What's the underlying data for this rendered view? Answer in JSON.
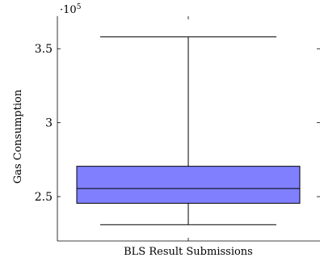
{
  "chart_data": {
    "type": "box",
    "ylabel": "Gas Consumption",
    "xlabel": "BLS Result Submissions",
    "y_scale_label": "·10",
    "y_scale_exponent": "5",
    "ylim": [
      220000,
      372000
    ],
    "y_ticks": [
      {
        "value": 250000,
        "label": "2.5"
      },
      {
        "value": 300000,
        "label": "3"
      },
      {
        "value": 350000,
        "label": "3.5"
      }
    ],
    "boxes": [
      {
        "category": "BLS Result Submissions",
        "whisker_low": 231000,
        "q1": 245500,
        "median": 255500,
        "q3": 270500,
        "whisker_high": 358000,
        "color": "#8080ff"
      }
    ],
    "grid": false,
    "legend": "none"
  }
}
